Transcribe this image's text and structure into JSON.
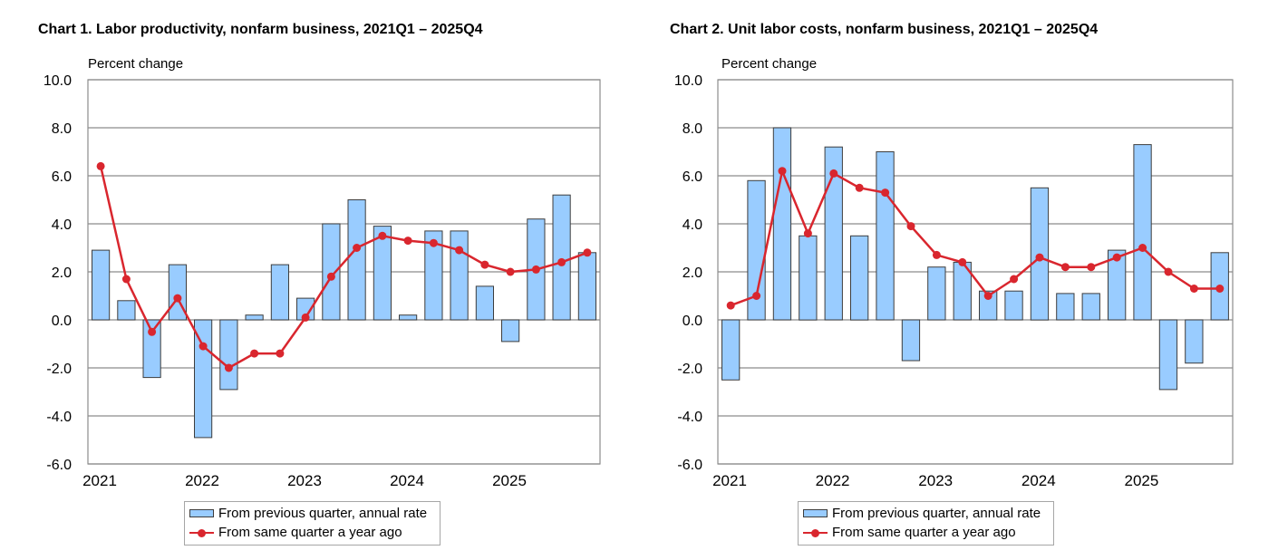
{
  "chart_data": [
    {
      "type": "bar",
      "title": "Chart  1. Labor productivity, nonfarm business, 2021Q1 – 2025Q4",
      "ylabel": "Percent change",
      "xlabel": "",
      "ylim": [
        -6,
        10
      ],
      "yticks": [
        "10.0",
        "8.0",
        "6.0",
        "4.0",
        "2.0",
        "0.0",
        "-2.0",
        "-4.0",
        "-6.0"
      ],
      "x_tick_labels": [
        "2021",
        "2022",
        "2023",
        "2024",
        "2025"
      ],
      "categories": [
        "2021Q1",
        "2021Q2",
        "2021Q3",
        "2021Q4",
        "2022Q1",
        "2022Q2",
        "2022Q3",
        "2022Q4",
        "2023Q1",
        "2023Q2",
        "2023Q3",
        "2023Q4",
        "2024Q1",
        "2024Q2",
        "2024Q3",
        "2024Q4",
        "2025Q1",
        "2025Q2",
        "2025Q3",
        "2025Q4"
      ],
      "series": [
        {
          "name": "From previous quarter, annual rate",
          "type": "bar",
          "values": [
            2.9,
            0.8,
            -2.4,
            2.3,
            -4.9,
            -2.9,
            0.2,
            2.3,
            0.9,
            4.0,
            5.0,
            3.9,
            0.2,
            3.7,
            3.7,
            1.4,
            -0.9,
            4.2,
            5.2,
            2.8
          ]
        },
        {
          "name": "From same quarter a year ago",
          "type": "line",
          "values": [
            6.4,
            1.7,
            -0.5,
            0.9,
            -1.1,
            -2.0,
            -1.4,
            -1.4,
            0.1,
            1.8,
            3.0,
            3.5,
            3.3,
            3.2,
            2.9,
            2.3,
            2.0,
            2.1,
            2.4,
            2.8
          ]
        }
      ],
      "legend": [
        "From previous quarter, annual rate",
        "From same quarter a year ago"
      ],
      "colors": {
        "bar_fill": "#99ccff",
        "bar_stroke": "#3d3d3d",
        "line": "#d9262e",
        "grid": "#8c8c8c"
      },
      "grid": true,
      "legend_position": "bottom-center"
    },
    {
      "type": "bar",
      "title": "Chart  2. Unit labor costs, nonfarm business, 2021Q1 – 2025Q4",
      "ylabel": "Percent change",
      "xlabel": "",
      "ylim": [
        -6,
        10
      ],
      "yticks": [
        "10.0",
        "8.0",
        "6.0",
        "4.0",
        "2.0",
        "0.0",
        "-2.0",
        "-4.0",
        "-6.0"
      ],
      "x_tick_labels": [
        "2021",
        "2022",
        "2023",
        "2024",
        "2025"
      ],
      "categories": [
        "2021Q1",
        "2021Q2",
        "2021Q3",
        "2021Q4",
        "2022Q1",
        "2022Q2",
        "2022Q3",
        "2022Q4",
        "2023Q1",
        "2023Q2",
        "2023Q3",
        "2023Q4",
        "2024Q1",
        "2024Q2",
        "2024Q3",
        "2024Q4",
        "2025Q1",
        "2025Q2",
        "2025Q3",
        "2025Q4"
      ],
      "series": [
        {
          "name": "From previous quarter, annual rate",
          "type": "bar",
          "values": [
            -2.5,
            5.8,
            8.0,
            3.5,
            7.2,
            3.5,
            7.0,
            -1.7,
            2.2,
            2.4,
            1.2,
            1.2,
            5.5,
            1.1,
            1.1,
            2.9,
            7.3,
            -2.9,
            -1.8,
            2.8
          ]
        },
        {
          "name": "From same quarter a year ago",
          "type": "line",
          "values": [
            0.6,
            1.0,
            6.2,
            3.6,
            6.1,
            5.5,
            5.3,
            3.9,
            2.7,
            2.4,
            1.0,
            1.7,
            2.6,
            2.2,
            2.2,
            2.6,
            3.0,
            2.0,
            1.3,
            1.3
          ]
        }
      ],
      "legend": [
        "From previous quarter, annual rate",
        "From same quarter a year ago"
      ],
      "colors": {
        "bar_fill": "#99ccff",
        "bar_stroke": "#3d3d3d",
        "line": "#d9262e",
        "grid": "#8c8c8c"
      },
      "grid": true,
      "legend_position": "bottom-center"
    }
  ]
}
